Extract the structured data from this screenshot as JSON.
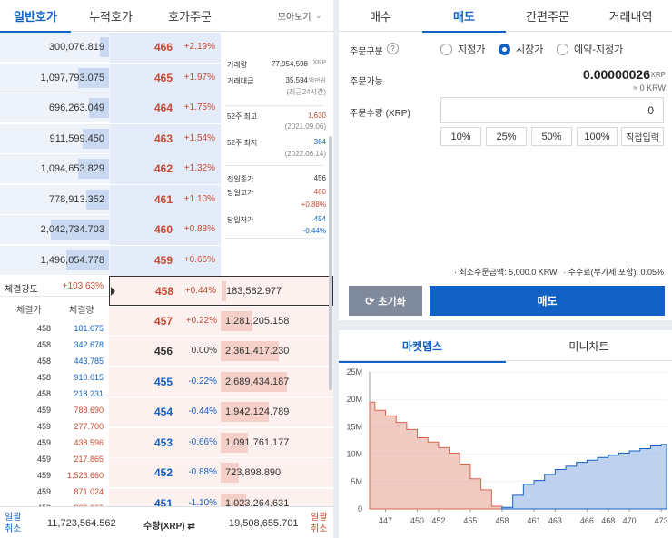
{
  "left_tabs": [
    "일반호가",
    "누적호가",
    "호가주문"
  ],
  "view_toggle": "모아보기",
  "asks": [
    {
      "vol": "300,076.819",
      "price": "466",
      "pct": "+2.19%",
      "fill": 0.15
    },
    {
      "vol": "1,097,793.075",
      "price": "465",
      "pct": "+1.97%",
      "fill": 0.53
    },
    {
      "vol": "696,263.049",
      "price": "464",
      "pct": "+1.75%",
      "fill": 0.34
    },
    {
      "vol": "911,599.450",
      "price": "463",
      "pct": "+1.54%",
      "fill": 0.44
    },
    {
      "vol": "1,094,653.829",
      "price": "462",
      "pct": "+1.32%",
      "fill": 0.53
    },
    {
      "vol": "778,913.352",
      "price": "461",
      "pct": "+1.10%",
      "fill": 0.38
    },
    {
      "vol": "2,042,734.703",
      "price": "460",
      "pct": "+0.88%",
      "fill": 0.99
    },
    {
      "vol": "1,496,054.778",
      "price": "459",
      "pct": "+0.66%",
      "fill": 0.72
    }
  ],
  "bids": [
    {
      "vol": "183,582.977",
      "price": "458",
      "pct": "+0.44%",
      "fill": 0.07
    },
    {
      "vol": "1,281,205.158",
      "price": "457",
      "pct": "+0.22%",
      "fill": 0.48
    },
    {
      "vol": "2,361,417.230",
      "price": "456",
      "pct": "0.00%",
      "fill": 0.88
    },
    {
      "vol": "2,689,434.187",
      "price": "455",
      "pct": "-0.22%",
      "fill": 1.0
    },
    {
      "vol": "1,942,124.789",
      "price": "454",
      "pct": "-0.44%",
      "fill": 0.72
    },
    {
      "vol": "1,091,761.177",
      "price": "453",
      "pct": "-0.66%",
      "fill": 0.41
    },
    {
      "vol": "723,898.890",
      "price": "452",
      "pct": "-0.88%",
      "fill": 0.27
    },
    {
      "vol": "1,023,264.631",
      "price": "451",
      "pct": "-1.10%",
      "fill": 0.38
    }
  ],
  "info": {
    "trade_vol_label": "거래량",
    "trade_vol": "77,954,598",
    "trade_vol_unit": "XRP",
    "trade_amt_label": "거래대금",
    "trade_amt": "35,594",
    "trade_amt_unit": "백만원",
    "trade_amt_note": "(최근24시간)",
    "high52_label": "52주 최고",
    "high52": "1,630",
    "high52_date": "(2021.09.06)",
    "low52_label": "52주 최저",
    "low52": "384",
    "low52_date": "(2022.06.14)",
    "prev_close_label": "전일종가",
    "prev_close": "456",
    "day_high_label": "당일고가",
    "day_high": "460",
    "day_high_pct": "+0.88%",
    "day_low_label": "당일저가",
    "day_low": "454",
    "day_low_pct": "-0.44%"
  },
  "strength": {
    "label": "체결강도",
    "value": "+103.63%",
    "col_price": "체결가",
    "col_vol": "체결량"
  },
  "trades": [
    {
      "price": "458",
      "vol": "181.675",
      "side": "bid"
    },
    {
      "price": "458",
      "vol": "342.678",
      "side": "bid"
    },
    {
      "price": "458",
      "vol": "443.785",
      "side": "bid"
    },
    {
      "price": "458",
      "vol": "910.015",
      "side": "bid"
    },
    {
      "price": "458",
      "vol": "218.231",
      "side": "bid"
    },
    {
      "price": "459",
      "vol": "788.690",
      "side": "ask"
    },
    {
      "price": "459",
      "vol": "277.700",
      "side": "ask"
    },
    {
      "price": "459",
      "vol": "438.596",
      "side": "ask"
    },
    {
      "price": "459",
      "vol": "217.865",
      "side": "ask"
    },
    {
      "price": "459",
      "vol": "1,523.660",
      "side": "ask"
    },
    {
      "price": "459",
      "vol": "871.024",
      "side": "ask"
    },
    {
      "price": "459",
      "vol": "839.905",
      "side": "ask"
    }
  ],
  "footer": {
    "cancel_left_1": "일괄",
    "cancel_left_2": "취소",
    "ask_total": "11,723,564.562",
    "qty_label": "수량(XRP) ⇄",
    "bid_total": "19,508,655.701",
    "cancel_right_1": "일괄",
    "cancel_right_2": "취소"
  },
  "right_tabs": [
    "매수",
    "매도",
    "간편주문",
    "거래내역"
  ],
  "order": {
    "type_label": "주문구분",
    "help": "?",
    "types": [
      "지정가",
      "시장가",
      "예약-지정가"
    ],
    "avail_label": "주문가능",
    "avail": "0.00000026",
    "avail_unit": "XRP",
    "avail_krw": "≈ 0 KRW",
    "qty_label": "주문수량 (XRP)",
    "qty_value": "0",
    "pct_buttons": [
      "10%",
      "25%",
      "50%",
      "100%"
    ],
    "direct_input": "직접입력",
    "min_note": "· 최소주문금액: 5,000.0 KRW",
    "fee_note": "· 수수료(부가세 포함): 0.05%",
    "reset": "초기화",
    "submit": "매도"
  },
  "chart_tabs": [
    "마켓뎁스",
    "미니차트"
  ],
  "chart_data": {
    "type": "area",
    "x_ticks": [
      447,
      450,
      452,
      455,
      458,
      461,
      463,
      466,
      468,
      470,
      473
    ],
    "y_ticks": [
      "25M",
      "20M",
      "15M",
      "10M",
      "5M",
      "0"
    ],
    "ylim": [
      0,
      25000000
    ],
    "xlim": [
      445.5,
      473.5
    ],
    "series": [
      {
        "side": "bid",
        "color": "#e8a799",
        "x": [
          446,
          447,
          448,
          449,
          450,
          451,
          452,
          453,
          454,
          455,
          456,
          457,
          458
        ],
        "values": [
          19.5,
          18.0,
          17.0,
          15.8,
          14.5,
          13.0,
          12.2,
          11.2,
          10.2,
          8.2,
          5.5,
          3.5,
          0.5
        ]
      },
      {
        "side": "ask",
        "color": "#93b4e6",
        "x": [
          458,
          459,
          460,
          461,
          462,
          463,
          464,
          465,
          466,
          467,
          468,
          469,
          470,
          471,
          472,
          473
        ],
        "values": [
          0.3,
          2.5,
          4.5,
          5.2,
          6.3,
          7.2,
          7.8,
          8.5,
          8.9,
          9.4,
          9.8,
          10.2,
          10.6,
          11.0,
          11.5,
          11.8
        ]
      }
    ]
  }
}
